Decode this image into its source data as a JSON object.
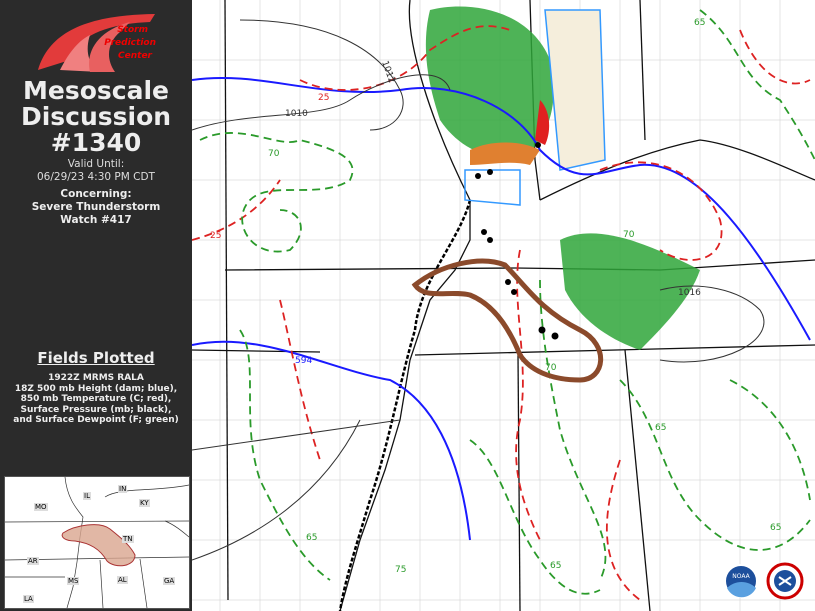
{
  "header": {
    "logo_text": [
      "Storm",
      "Prediction",
      "Center"
    ],
    "title_line1": "Mesoscale",
    "title_line2": "Discussion",
    "number": "#1340",
    "valid_label": "Valid Until:",
    "valid_time": "06/29/23 4:30 PM CDT",
    "concerning_label": "Concerning:",
    "concerning_line1": "Severe Thunderstorm",
    "concerning_line2": "Watch #417"
  },
  "fields": {
    "title": "Fields Plotted",
    "lines": [
      "1922Z MRMS RALA",
      "18Z 500 mb Height (dam; blue),",
      "850 mb Temperature (C; red),",
      "Surface Pressure (mb; black),",
      "and Surface Dewpoint (F; green)"
    ]
  },
  "inset": {
    "states": [
      "MO",
      "IL",
      "IN",
      "KY",
      "TN",
      "AR",
      "MS",
      "AL",
      "GA",
      "LA"
    ]
  },
  "map": {
    "contour_labels": {
      "pressure": [
        "1012",
        "1010",
        "1016"
      ],
      "temperature": [
        "25",
        "25"
      ],
      "height": [
        "594"
      ],
      "dewpoint": [
        "70",
        "70",
        "70",
        "65",
        "65",
        "65",
        "75",
        "65",
        "65"
      ]
    },
    "colors": {
      "height": "#1a1aff",
      "temperature": "#dd2222",
      "pressure": "#333333",
      "dewpoint": "#2a9a2a",
      "md_outline": "#8b4a2b",
      "watch_outline": "#3399ff",
      "radar": "#2fa63a"
    },
    "logos": [
      "NOAA",
      "National Weather Service"
    ]
  }
}
